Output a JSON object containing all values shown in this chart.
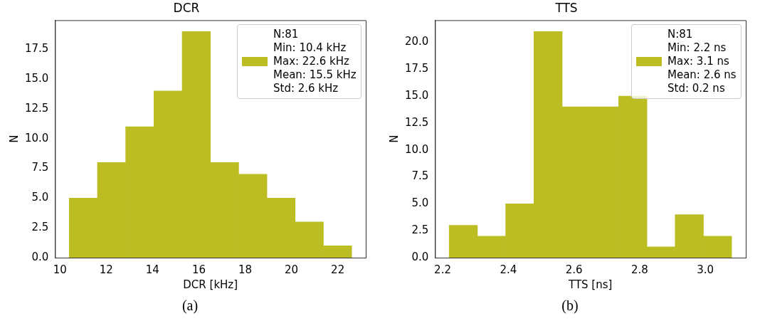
{
  "chart_data": [
    {
      "type": "histogram",
      "title": "DCR",
      "xlabel": "DCR [kHz]",
      "ylabel": "N",
      "bins": [
        10.4,
        11.62,
        12.84,
        14.06,
        15.28,
        16.5,
        17.72,
        18.94,
        20.16,
        21.38,
        22.6
      ],
      "series": [
        {
          "name": "N:81\nMin: 10.4 kHz\nMax: 22.6 kHz\nMean: 15.5 kHz\nStd: 2.6 kHz",
          "color": "#bcbd22",
          "values": [
            5,
            8,
            11,
            14,
            19,
            8,
            7,
            5,
            3,
            1
          ]
        }
      ],
      "xlim": [
        9.79,
        23.21
      ],
      "xticks": [
        10,
        12,
        14,
        16,
        18,
        20,
        22
      ],
      "ylim": [
        0,
        19.95
      ],
      "yticks": [
        {
          "value": 0,
          "label": "0.0"
        },
        {
          "value": 2.5,
          "label": "2.5"
        },
        {
          "value": 5,
          "label": "5.0"
        },
        {
          "value": 7.5,
          "label": "7.5"
        },
        {
          "value": 10,
          "label": "10.0"
        },
        {
          "value": 12.5,
          "label": "12.5"
        },
        {
          "value": 15,
          "label": "15.0"
        },
        {
          "value": 17.5,
          "label": "17.5"
        }
      ],
      "legend": "top right",
      "grid": false,
      "annotations": [
        "(a)"
      ]
    },
    {
      "type": "histogram",
      "title": "TTS",
      "xlabel": "TTS [ns]",
      "ylabel": "N",
      "bins": [
        2.22,
        2.306,
        2.392,
        2.478,
        2.564,
        2.65,
        2.736,
        2.822,
        2.908,
        2.994,
        3.08
      ],
      "series": [
        {
          "name": "N:81\nMin: 2.2 ns\nMax: 3.1 ns\nMean: 2.6 ns\nStd: 0.2 ns",
          "color": "#bcbd22",
          "values": [
            3,
            2,
            5,
            21,
            14,
            14,
            15,
            1,
            4,
            2
          ]
        }
      ],
      "xlim": [
        2.177,
        3.123
      ],
      "xticks": [
        2.2,
        2.4,
        2.6,
        2.8,
        {
          "value": 3,
          "label": "3.0"
        }
      ],
      "ylim": [
        0,
        22.05
      ],
      "yticks": [
        {
          "value": 0,
          "label": "0.0"
        },
        {
          "value": 2.5,
          "label": "2.5"
        },
        {
          "value": 5,
          "label": "5.0"
        },
        {
          "value": 7.5,
          "label": "7.5"
        },
        {
          "value": 10,
          "label": "10.0"
        },
        {
          "value": 12.5,
          "label": "12.5"
        },
        {
          "value": 15,
          "label": "15.0"
        },
        {
          "value": 17.5,
          "label": "17.5"
        },
        {
          "value": 20,
          "label": "20.0"
        }
      ],
      "legend": "top right",
      "grid": false,
      "annotations": [
        "(b)"
      ]
    }
  ]
}
